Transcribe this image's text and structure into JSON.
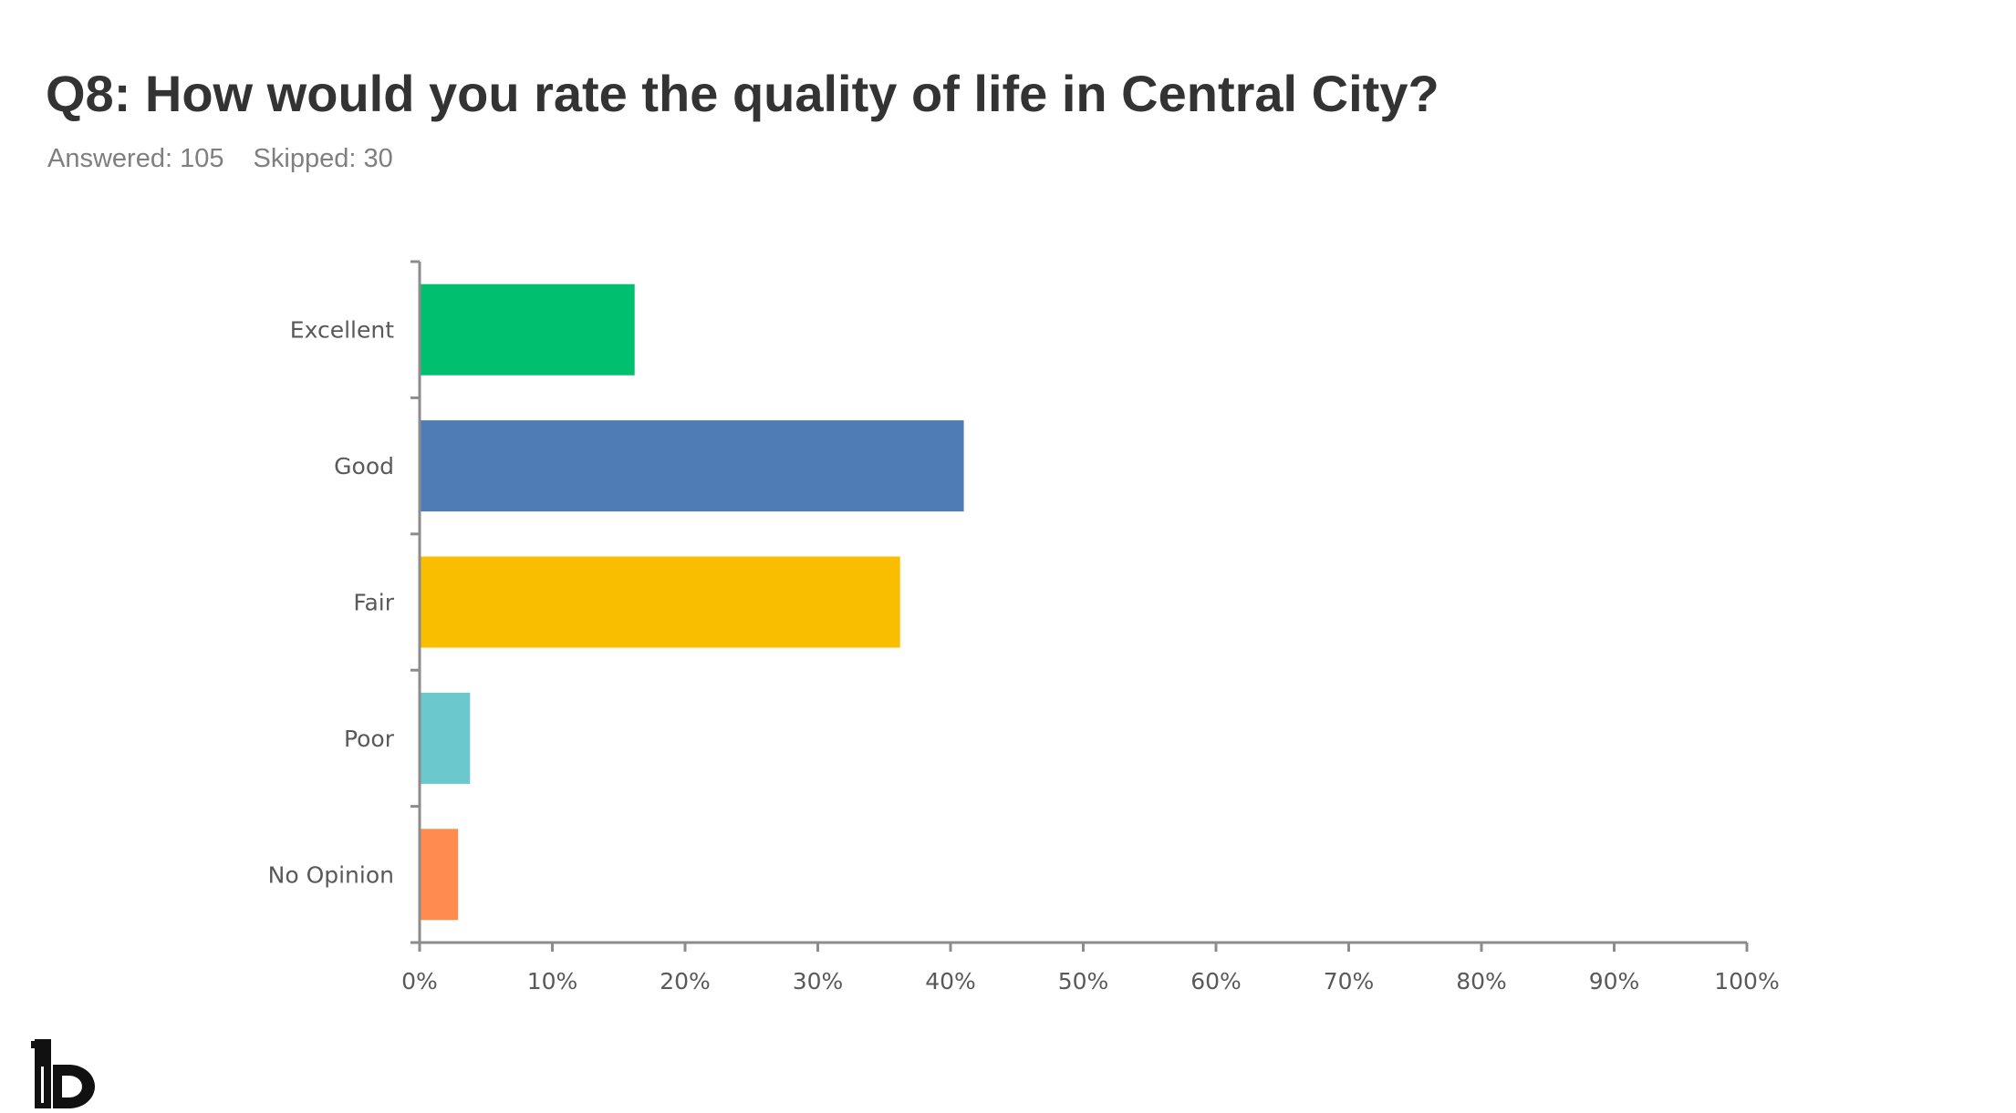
{
  "header": {
    "title": "Q8: How would you rate the quality of life in Central City?",
    "answered": "Answered: 105",
    "skipped": "Skipped: 30"
  },
  "chart_data": {
    "type": "bar",
    "orientation": "horizontal",
    "categories": [
      "Excellent",
      "Good",
      "Fair",
      "Poor",
      "No Opinion"
    ],
    "values": [
      16.2,
      41.0,
      36.2,
      3.8,
      2.9
    ],
    "colors": [
      "#00bf6f",
      "#507cb6",
      "#f9be00",
      "#6bc8cd",
      "#ff8b4f"
    ],
    "xlim": [
      0,
      100
    ],
    "xticks": [
      "0%",
      "10%",
      "20%",
      "30%",
      "40%",
      "50%",
      "60%",
      "70%",
      "80%",
      "90%",
      "100%"
    ],
    "grid": false,
    "legend": "none"
  },
  "logo": {
    "icon": "logo-icon"
  }
}
